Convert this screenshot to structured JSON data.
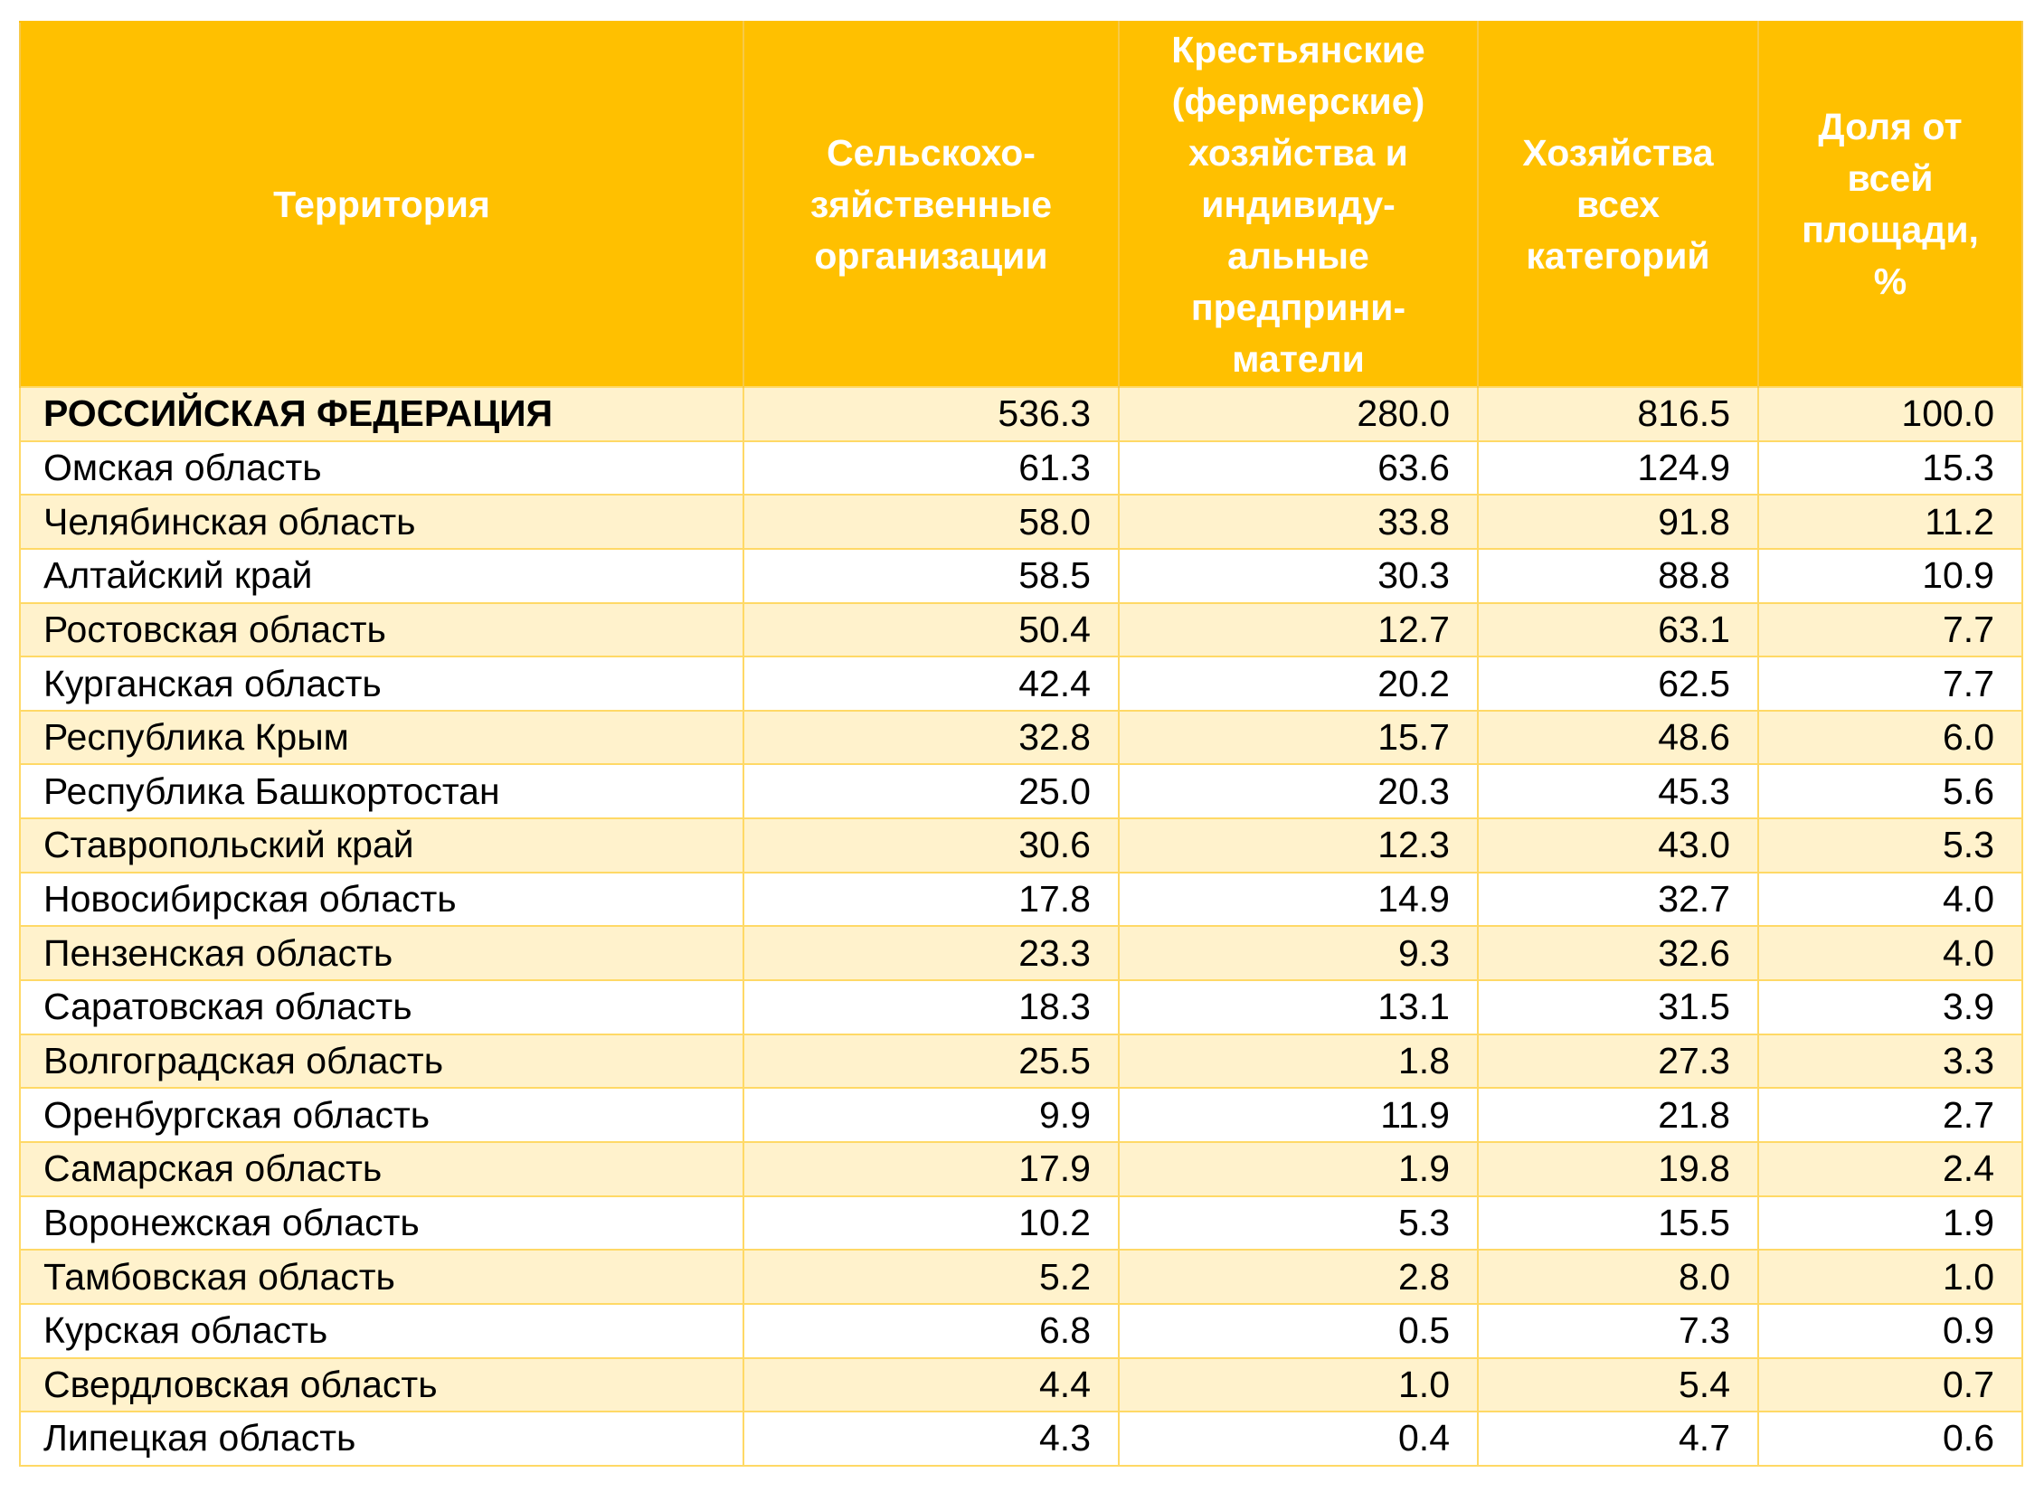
{
  "table": {
    "colors": {
      "header_bg": "#FFC000",
      "header_text": "#FFFFFF",
      "stripe_bg": "#FFF2CC",
      "plain_bg": "#FFFFFF",
      "border": "#FFD966"
    },
    "headers": [
      {
        "lines": [
          "Территория"
        ]
      },
      {
        "lines": [
          "Сельскохо-",
          "зяйственные",
          "организации"
        ]
      },
      {
        "lines": [
          "Крестьянские",
          "(фермерские)",
          "хозяйства и",
          "индивиду-",
          "альные",
          "предприни-",
          "матели"
        ]
      },
      {
        "lines": [
          "Хозяйства",
          "всех",
          "категорий"
        ]
      },
      {
        "lines": [
          "Доля от",
          "всей",
          "площади,",
          "%"
        ]
      }
    ],
    "rows": [
      {
        "territory": "РОССИЙСКАЯ ФЕДЕРАЦИЯ",
        "agri_orgs": "536.3",
        "farms_ip": "280.0",
        "all_categories": "816.5",
        "share_pct": "100.0"
      },
      {
        "territory": "Омская область",
        "agri_orgs": "61.3",
        "farms_ip": "63.6",
        "all_categories": "124.9",
        "share_pct": "15.3"
      },
      {
        "territory": "Челябинская область",
        "agri_orgs": "58.0",
        "farms_ip": "33.8",
        "all_categories": "91.8",
        "share_pct": "11.2"
      },
      {
        "territory": "Алтайский край",
        "agri_orgs": "58.5",
        "farms_ip": "30.3",
        "all_categories": "88.8",
        "share_pct": "10.9"
      },
      {
        "territory": "Ростовская область",
        "agri_orgs": "50.4",
        "farms_ip": "12.7",
        "all_categories": "63.1",
        "share_pct": "7.7"
      },
      {
        "territory": "Курганская область",
        "agri_orgs": "42.4",
        "farms_ip": "20.2",
        "all_categories": "62.5",
        "share_pct": "7.7"
      },
      {
        "territory": "Республика Крым",
        "agri_orgs": "32.8",
        "farms_ip": "15.7",
        "all_categories": "48.6",
        "share_pct": "6.0"
      },
      {
        "territory": "Республика Башкортостан",
        "agri_orgs": "25.0",
        "farms_ip": "20.3",
        "all_categories": "45.3",
        "share_pct": "5.6"
      },
      {
        "territory": "Ставропольский край",
        "agri_orgs": "30.6",
        "farms_ip": "12.3",
        "all_categories": "43.0",
        "share_pct": "5.3"
      },
      {
        "territory": "Новосибирская область",
        "agri_orgs": "17.8",
        "farms_ip": "14.9",
        "all_categories": "32.7",
        "share_pct": "4.0"
      },
      {
        "territory": "Пензенская область",
        "agri_orgs": "23.3",
        "farms_ip": "9.3",
        "all_categories": "32.6",
        "share_pct": "4.0"
      },
      {
        "territory": "Саратовская область",
        "agri_orgs": "18.3",
        "farms_ip": "13.1",
        "all_categories": "31.5",
        "share_pct": "3.9"
      },
      {
        "territory": "Волгоградская область",
        "agri_orgs": "25.5",
        "farms_ip": "1.8",
        "all_categories": "27.3",
        "share_pct": "3.3"
      },
      {
        "territory": "Оренбургская область",
        "agri_orgs": "9.9",
        "farms_ip": "11.9",
        "all_categories": "21.8",
        "share_pct": "2.7"
      },
      {
        "territory": "Самарская область",
        "agri_orgs": "17.9",
        "farms_ip": "1.9",
        "all_categories": "19.8",
        "share_pct": "2.4"
      },
      {
        "territory": "Воронежская область",
        "agri_orgs": "10.2",
        "farms_ip": "5.3",
        "all_categories": "15.5",
        "share_pct": "1.9"
      },
      {
        "territory": "Тамбовская область",
        "agri_orgs": "5.2",
        "farms_ip": "2.8",
        "all_categories": "8.0",
        "share_pct": "1.0"
      },
      {
        "territory": "Курская область",
        "agri_orgs": "6.8",
        "farms_ip": "0.5",
        "all_categories": "7.3",
        "share_pct": "0.9"
      },
      {
        "territory": "Свердловская область",
        "agri_orgs": "4.4",
        "farms_ip": "1.0",
        "all_categories": "5.4",
        "share_pct": "0.7"
      },
      {
        "territory": "Липецкая область",
        "agri_orgs": "4.3",
        "farms_ip": "0.4",
        "all_categories": "4.7",
        "share_pct": "0.6"
      }
    ]
  }
}
